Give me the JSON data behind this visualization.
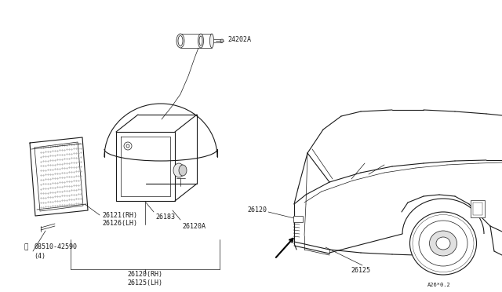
{
  "background_color": "#ffffff",
  "line_color": "#1a1a1a",
  "text_color": "#1a1a1a",
  "fig_width": 6.4,
  "fig_height": 3.72,
  "dpi": 100,
  "label_24202A": "24202A",
  "label_26121": "26121(RH)",
  "label_26126": "26126(LH)",
  "label_26183": "26183",
  "label_26120A": "26120A",
  "label_08510": "08510-42590",
  "label_08510_qty": "(4)",
  "label_26120_rh": "26120(RH)",
  "label_26125_lh": "26125(LH)",
  "label_26120_car": "26120",
  "label_26125_car": "26125",
  "label_ref": "A26*0.2"
}
